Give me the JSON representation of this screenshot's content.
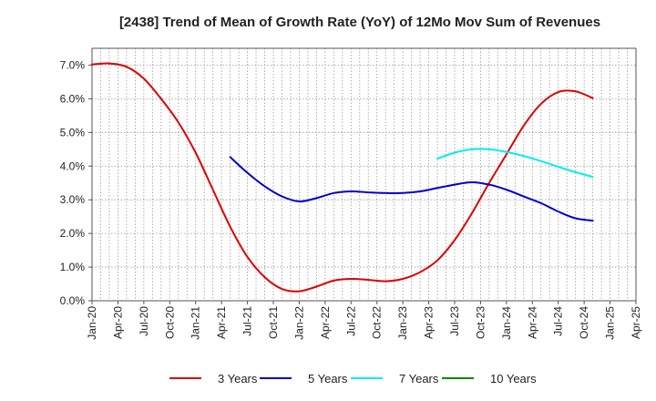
{
  "chart_data": {
    "type": "line",
    "title": "[2438]  Trend of Mean of Growth Rate (YoY) of 12Mo Mov Sum of Revenues",
    "xlabel": "",
    "ylabel": "",
    "ylim": [
      0,
      7.5
    ],
    "y_ticks": [
      0,
      1,
      2,
      3,
      4,
      5,
      6,
      7
    ],
    "y_tick_labels": [
      "0.0%",
      "1.0%",
      "2.0%",
      "3.0%",
      "4.0%",
      "5.0%",
      "6.0%",
      "7.0%"
    ],
    "x_ticks": [
      "Jan-20",
      "Apr-20",
      "Jul-20",
      "Oct-20",
      "Jan-21",
      "Apr-21",
      "Jul-21",
      "Oct-21",
      "Jan-22",
      "Apr-22",
      "Jul-22",
      "Oct-22",
      "Jan-23",
      "Apr-23",
      "Jul-23",
      "Oct-23",
      "Jan-24",
      "Apr-24",
      "Jul-24",
      "Oct-24",
      "Jan-25",
      "Apr-25"
    ],
    "grid": true,
    "legend_position": "bottom",
    "series": [
      {
        "name": "3 Years",
        "color": "#dd0000",
        "points": [
          [
            0,
            7.02
          ],
          [
            1,
            7.05
          ],
          [
            2,
            6.95
          ],
          [
            3,
            6.6
          ],
          [
            4,
            6.0
          ],
          [
            5,
            5.3
          ],
          [
            6,
            4.4
          ],
          [
            7,
            3.3
          ],
          [
            8,
            2.2
          ],
          [
            9,
            1.3
          ],
          [
            10,
            0.7
          ],
          [
            11,
            0.35
          ],
          [
            12,
            0.28
          ],
          [
            13,
            0.42
          ],
          [
            14,
            0.6
          ],
          [
            15,
            0.65
          ],
          [
            16,
            0.62
          ],
          [
            17,
            0.58
          ],
          [
            18,
            0.65
          ],
          [
            19,
            0.85
          ],
          [
            20,
            1.2
          ],
          [
            21,
            1.8
          ],
          [
            22,
            2.6
          ],
          [
            23,
            3.5
          ],
          [
            24,
            4.35
          ],
          [
            25,
            5.2
          ],
          [
            26,
            5.85
          ],
          [
            27,
            6.2
          ],
          [
            28,
            6.22
          ],
          [
            29,
            6.02
          ]
        ]
      },
      {
        "name": "5 Years",
        "color": "#0000cc",
        "points": [
          [
            8,
            4.27
          ],
          [
            9,
            3.8
          ],
          [
            10,
            3.4
          ],
          [
            11,
            3.1
          ],
          [
            12,
            2.95
          ],
          [
            13,
            3.05
          ],
          [
            14,
            3.2
          ],
          [
            15,
            3.25
          ],
          [
            16,
            3.22
          ],
          [
            17,
            3.2
          ],
          [
            18,
            3.2
          ],
          [
            19,
            3.25
          ],
          [
            20,
            3.35
          ],
          [
            21,
            3.45
          ],
          [
            22,
            3.52
          ],
          [
            23,
            3.45
          ],
          [
            24,
            3.3
          ],
          [
            25,
            3.1
          ],
          [
            26,
            2.9
          ],
          [
            27,
            2.65
          ],
          [
            28,
            2.45
          ],
          [
            29,
            2.38
          ]
        ]
      },
      {
        "name": "7 Years",
        "color": "#00eeee",
        "points": [
          [
            20,
            4.22
          ],
          [
            21,
            4.4
          ],
          [
            22,
            4.5
          ],
          [
            23,
            4.5
          ],
          [
            24,
            4.42
          ],
          [
            25,
            4.3
          ],
          [
            26,
            4.15
          ],
          [
            27,
            3.98
          ],
          [
            28,
            3.82
          ],
          [
            29,
            3.68
          ]
        ]
      },
      {
        "name": "10 Years",
        "color": "#008800",
        "points": []
      }
    ]
  }
}
